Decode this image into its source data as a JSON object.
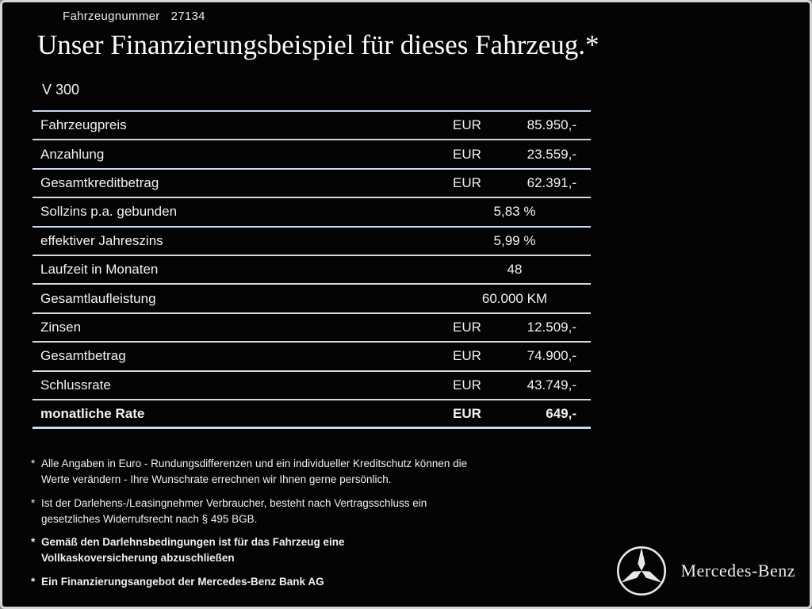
{
  "header": {
    "vehicle_number_label": "Fahrzeugnummer",
    "vehicle_number": "27134",
    "title": "Unser Finanzierungsbeispiel für dieses Fahrzeug.*",
    "model": "V 300"
  },
  "table": {
    "rows": [
      {
        "label": "Fahrzeugpreis",
        "unit": "EUR",
        "value": "85.950,-",
        "bold": false
      },
      {
        "label": "Anzahlung",
        "unit": "EUR",
        "value": "23.559,-",
        "bold": false
      },
      {
        "label": "Gesamtkreditbetrag",
        "unit": "EUR",
        "value": "62.391,-",
        "bold": false
      },
      {
        "label": "Sollzins p.a. gebunden",
        "unit": "",
        "value": "5,83 %",
        "bold": false
      },
      {
        "label": "effektiver Jahreszins",
        "unit": "",
        "value": "5,99 %",
        "bold": false
      },
      {
        "label": "Laufzeit in Monaten",
        "unit": "",
        "value": "48",
        "bold": false
      },
      {
        "label": "Gesamtlaufleistung",
        "unit": "",
        "value": "60.000 KM",
        "bold": false
      },
      {
        "label": "Zinsen",
        "unit": "EUR",
        "value": "12.509,-",
        "bold": false
      },
      {
        "label": "Gesamtbetrag",
        "unit": "EUR",
        "value": "74.900,-",
        "bold": false
      },
      {
        "label": "Schlussrate",
        "unit": "EUR",
        "value": "43.749,-",
        "bold": false
      },
      {
        "label": "monatliche Rate",
        "unit": "EUR",
        "value": "649,-",
        "bold": true
      }
    ]
  },
  "footnotes": [
    {
      "marker": "*",
      "bold": false,
      "lines": [
        "Alle Angaben in Euro - Rundungsdifferenzen und ein individueller Kreditschutz können die",
        "Werte verändern - Ihre Wunschrate errechnen wir Ihnen gerne persönlich."
      ]
    },
    {
      "marker": "*",
      "bold": false,
      "lines": [
        "Ist der Darlehens-/Leasingnehmer Verbraucher, besteht nach Vertragsschluss ein",
        "gesetzliches Widerrufsrecht nach § 495 BGB."
      ]
    },
    {
      "marker": "*",
      "bold": true,
      "lines": [
        "Gemäß den Darlehnsbedingungen ist für das Fahrzeug eine",
        "Vollkaskoversicherung abzuschließen"
      ]
    },
    {
      "marker": "*",
      "bold": true,
      "lines": [
        "Ein Finanzierungsangebot der Mercedes-Benz Bank AG"
      ]
    }
  ],
  "brand": {
    "logo_icon": "mercedes-star-icon",
    "name": "Mercedes-Benz"
  },
  "colors": {
    "background": "#040404",
    "text": "#f2f2f2",
    "divider": "#ccdae9",
    "frame": "#d6d6d6"
  }
}
